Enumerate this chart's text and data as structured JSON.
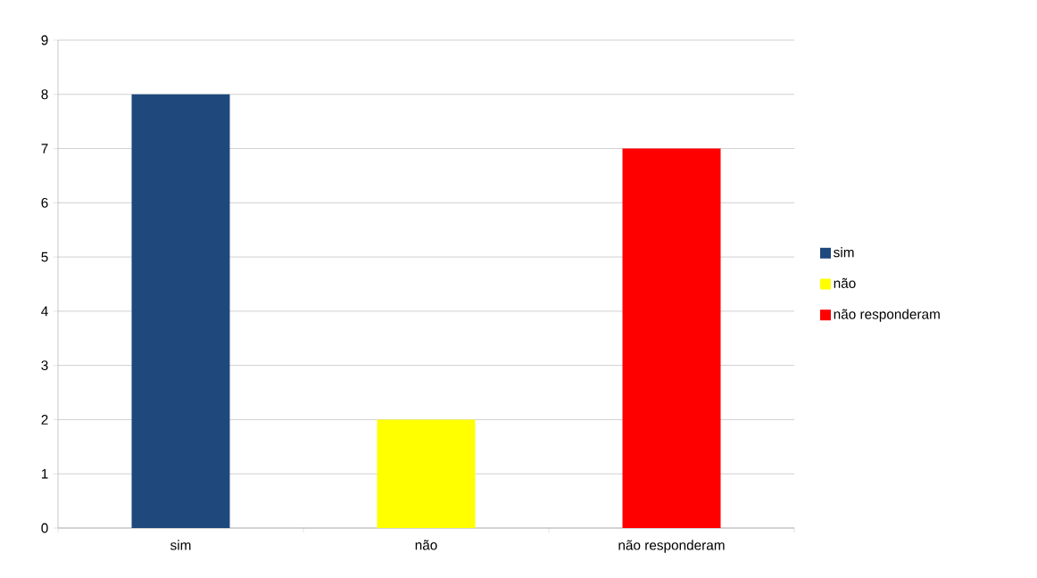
{
  "chart_data": {
    "type": "bar",
    "categories": [
      "sim",
      "não",
      "não responderam"
    ],
    "series": [
      {
        "name": "sim",
        "color": "#1f497d",
        "values": [
          8,
          null,
          null
        ]
      },
      {
        "name": "não",
        "color": "#ffff00",
        "values": [
          null,
          2,
          null
        ]
      },
      {
        "name": "não responderam",
        "color": "#ff0000",
        "values": [
          null,
          null,
          7
        ]
      }
    ],
    "ylim": [
      0,
      9
    ],
    "yticks": [
      0,
      1,
      2,
      3,
      4,
      5,
      6,
      7,
      8,
      9
    ],
    "grid": "y",
    "legend": "right"
  }
}
